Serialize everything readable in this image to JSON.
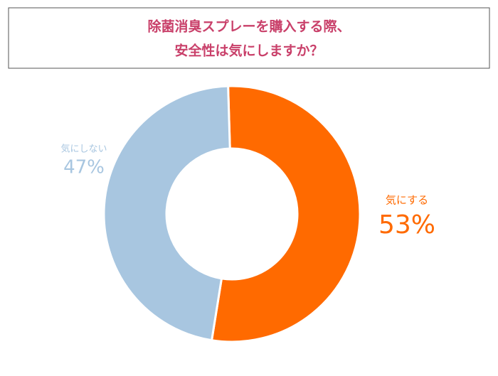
{
  "chart_data": {
    "type": "donut",
    "title": [
      "除菌消臭スプレーを購入する際、",
      "安全性は気にしますか？"
    ],
    "categories": [
      "気にする",
      "気にしない"
    ],
    "values": [
      53,
      47
    ],
    "value_labels": [
      "53%",
      "47%"
    ],
    "colors": [
      "#ff6a00",
      "#a8c6e0"
    ]
  }
}
